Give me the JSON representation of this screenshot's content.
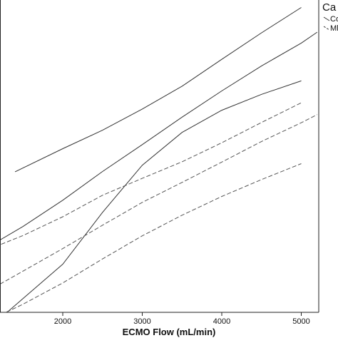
{
  "chart_data": {
    "type": "line",
    "title": "",
    "xlabel": "ECMO Flow (mL/min)",
    "ylabel": "",
    "xlim": [
      1000,
      5300
    ],
    "ylim": [
      0,
      100
    ],
    "xticks": [
      2000,
      3000,
      4000,
      5000
    ],
    "xtick_labels": [
      "2000",
      "3000",
      "4000",
      "5000"
    ],
    "grid": false,
    "legend": {
      "title": "Ca",
      "placement": "top-right",
      "entries": [
        {
          "label": "Co",
          "style": "solid"
        },
        {
          "label": "Ml",
          "style": "dashed"
        }
      ]
    },
    "series": [
      {
        "group": "Co",
        "role": "upper",
        "style": "solid",
        "x": [
          1400,
          2000,
          2500,
          3000,
          3500,
          4000,
          4500,
          5000
        ],
        "y": [
          45,
          52.4,
          58.3,
          65.1,
          72.4,
          81,
          89.5,
          97.6
        ]
      },
      {
        "group": "Co",
        "role": "fit",
        "style": "solid",
        "x": [
          1000,
          1500,
          2000,
          2500,
          3000,
          3500,
          4000,
          4500,
          5000,
          5200
        ],
        "y": [
          20,
          27.5,
          35.9,
          45.1,
          53.7,
          62.5,
          70.9,
          78.9,
          86.2,
          89.7
        ]
      },
      {
        "group": "Co",
        "role": "lower",
        "style": "solid",
        "x": [
          1300,
          2000,
          2500,
          3000,
          3500,
          4000,
          4500,
          5000
        ],
        "y": [
          0,
          15.4,
          32,
          47.1,
          57.6,
          64.7,
          69.8,
          74.1
        ]
      },
      {
        "group": "Ml",
        "role": "upper",
        "style": "dashed",
        "x": [
          1000,
          1500,
          2000,
          2500,
          3000,
          3500,
          4000,
          4500,
          5000
        ],
        "y": [
          19.5,
          24.6,
          30.6,
          37.5,
          42.9,
          48.2,
          54.3,
          60.8,
          67.1
        ]
      },
      {
        "group": "Ml",
        "role": "fit",
        "style": "dashed",
        "x": [
          1000,
          1500,
          2000,
          2500,
          3000,
          3500,
          4000,
          4500,
          5000,
          5200
        ],
        "y": [
          6,
          13.2,
          20.4,
          27.9,
          35.2,
          41.6,
          48.1,
          54.7,
          60.7,
          63.3
        ]
      },
      {
        "group": "Ml",
        "role": "lower",
        "style": "dashed",
        "x": [
          1000,
          1500,
          2000,
          2500,
          3000,
          3500,
          4000,
          4500,
          5000
        ],
        "y": [
          -3.5,
          2.6,
          9.4,
          17.1,
          24.5,
          31.1,
          37.1,
          42.5,
          47.6
        ]
      }
    ]
  }
}
